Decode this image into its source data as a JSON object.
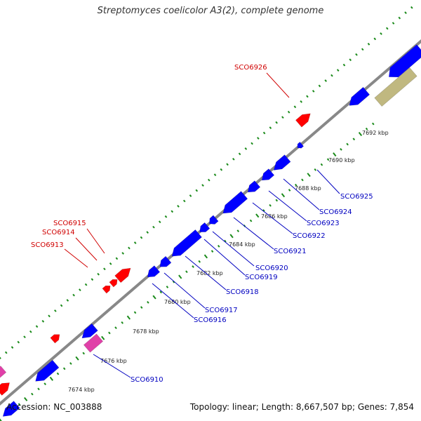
{
  "title": "Streptomyces coelicolor A3(2), complete genome",
  "footer": {
    "accession": "Accession: NC_003888",
    "summary": "Topology: linear; Length: 8,667,507 bp; Genes: 7,854"
  },
  "colors": {
    "backbone": "#888888",
    "forward_strand": "#ff0000",
    "reverse_strand": "#0000ff",
    "rna": "#e040a8",
    "region": "#c0b880",
    "tick_marks": "#1a8a1a",
    "forward_label": "#d00000",
    "reverse_label": "#0000c0"
  },
  "kbp_labels": [
    "7674 kbp",
    "7676 kbp",
    "7678 kbp",
    "7680 kbp",
    "7682 kbp",
    "7684 kbp",
    "7686 kbp",
    "7688 kbp",
    "7690 kbp",
    "7692 kbp"
  ],
  "forward_gene_labels": [
    "SCO6926",
    "SCO6915",
    "SCO6914",
    "SCO6913"
  ],
  "reverse_gene_labels": [
    "SCO6925",
    "SCO6924",
    "SCO6923",
    "SCO6922",
    "SCO6921",
    "SCO6920",
    "SCO6919",
    "SCO6918",
    "SCO6917",
    "SCO6916",
    "SCO6910"
  ]
}
